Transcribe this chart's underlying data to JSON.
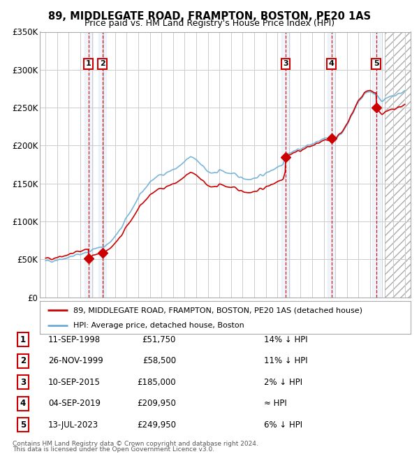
{
  "title": "89, MIDDLEGATE ROAD, FRAMPTON, BOSTON, PE20 1AS",
  "subtitle": "Price paid vs. HM Land Registry's House Price Index (HPI)",
  "footer1": "Contains HM Land Registry data © Crown copyright and database right 2024.",
  "footer2": "This data is licensed under the Open Government Licence v3.0.",
  "legend_line1": "89, MIDDLEGATE ROAD, FRAMPTON, BOSTON, PE20 1AS (detached house)",
  "legend_line2": "HPI: Average price, detached house, Boston",
  "hpi_color": "#6baed6",
  "price_color": "#cc0000",
  "marker_color": "#cc0000",
  "sale_dates_num": [
    1998.7,
    1999.9,
    2015.7,
    2019.67,
    2023.53
  ],
  "sale_prices": [
    51750,
    58500,
    185000,
    209950,
    249950
  ],
  "sale_labels": [
    "1",
    "2",
    "3",
    "4",
    "5"
  ],
  "table_rows": [
    [
      "1",
      "11-SEP-1998",
      "£51,750",
      "14% ↓ HPI"
    ],
    [
      "2",
      "26-NOV-1999",
      "£58,500",
      "11% ↓ HPI"
    ],
    [
      "3",
      "10-SEP-2015",
      "£185,000",
      "2% ↓ HPI"
    ],
    [
      "4",
      "04-SEP-2019",
      "£209,950",
      "≈ HPI"
    ],
    [
      "5",
      "13-JUL-2023",
      "£249,950",
      "6% ↓ HPI"
    ]
  ],
  "ylim": [
    0,
    350000
  ],
  "yticks": [
    0,
    50000,
    100000,
    150000,
    200000,
    250000,
    300000,
    350000
  ],
  "ytick_labels": [
    "£0",
    "£50K",
    "£100K",
    "£150K",
    "£200K",
    "£250K",
    "£300K",
    "£350K"
  ],
  "xlim_start": 1994.5,
  "xlim_end": 2026.5,
  "hatch_start": 2024.25,
  "bg_color": "#ffffff",
  "plot_bg_color": "#ffffff",
  "grid_color": "#cccccc"
}
